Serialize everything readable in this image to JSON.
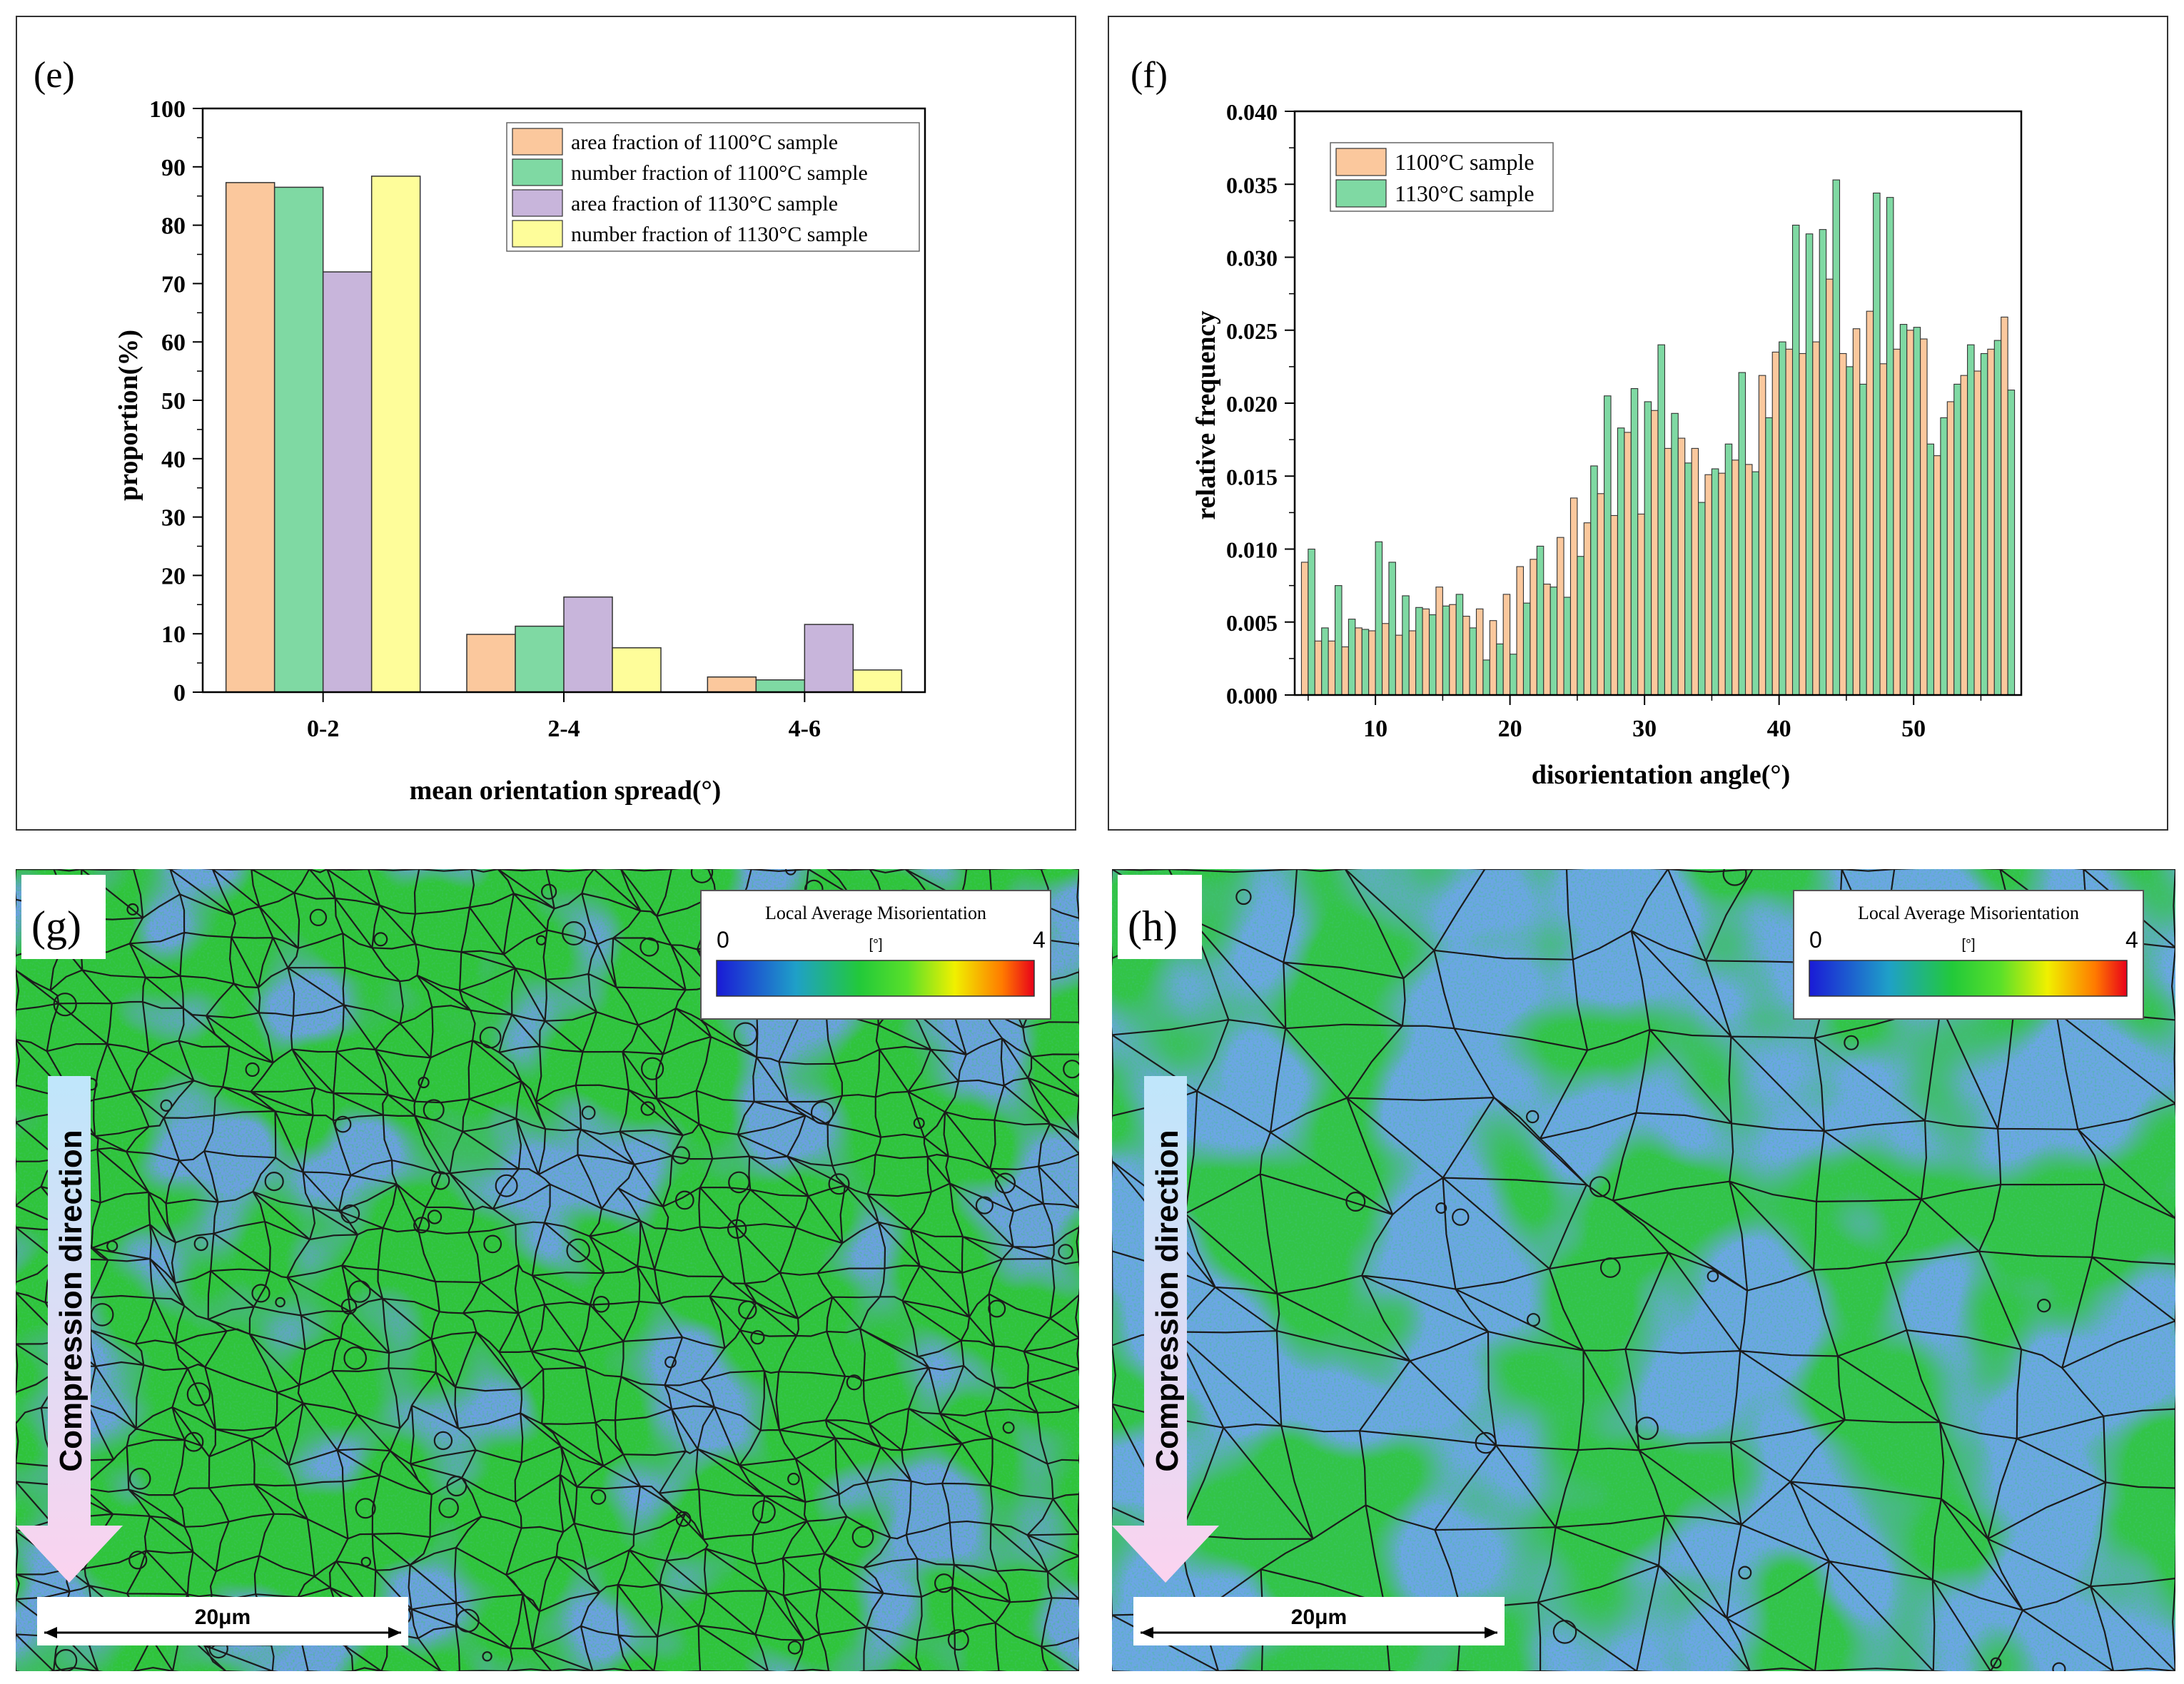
{
  "colors": {
    "orange": "#FBC89D",
    "green": "#7FD9A3",
    "purple": "#C8B5DB",
    "yellow": "#FEFD9A",
    "edge": "#333333"
  },
  "panel_e": {
    "label": "(e)",
    "chart_data": {
      "type": "bar",
      "title": "",
      "xlabel": "mean orientation spread(°)",
      "ylabel": "proportion(%)",
      "ylim": [
        0,
        100
      ],
      "yticks": [
        "0",
        "10",
        "20",
        "30",
        "40",
        "50",
        "60",
        "70",
        "80",
        "90",
        "100"
      ],
      "categories": [
        "0-2",
        "2-4",
        "4-6"
      ],
      "legend_position": "top-right",
      "series": [
        {
          "name": "area fraction of 1100°C sample",
          "color": "#FBC89D",
          "values": [
            87.3,
            9.9,
            2.6
          ]
        },
        {
          "name": "number fraction of 1100°C sample",
          "color": "#7FD9A3",
          "values": [
            86.5,
            11.3,
            2.1
          ]
        },
        {
          "name": "area fraction of 1130°C sample",
          "color": "#C8B5DB",
          "values": [
            72.0,
            16.3,
            11.6
          ]
        },
        {
          "name": "number fraction of 1130°C sample",
          "color": "#FEFD9A",
          "values": [
            88.4,
            7.6,
            3.8
          ]
        }
      ]
    }
  },
  "panel_f": {
    "label": "(f)",
    "chart_data": {
      "type": "bar",
      "title": "",
      "xlabel": "disorientation angle(°)",
      "ylabel": "relative frequency",
      "xlim": [
        4,
        58
      ],
      "ylim": [
        0,
        0.04
      ],
      "xticks": [
        "10",
        "20",
        "30",
        "40",
        "50"
      ],
      "yticks": [
        "0.000",
        "0.005",
        "0.010",
        "0.015",
        "0.020",
        "0.025",
        "0.030",
        "0.035",
        "0.040"
      ],
      "legend_position": "top-left",
      "x": [
        5,
        6,
        7,
        8,
        9,
        10,
        11,
        12,
        13,
        14,
        15,
        16,
        17,
        18,
        19,
        20,
        21,
        22,
        23,
        24,
        25,
        26,
        27,
        28,
        29,
        30,
        31,
        32,
        33,
        34,
        35,
        36,
        37,
        38,
        39,
        40,
        41,
        42,
        43,
        44,
        45,
        46,
        47,
        48,
        49,
        50,
        51,
        52,
        53,
        54,
        55,
        56,
        57
      ],
      "series": [
        {
          "name": "1100°C sample",
          "color": "#FBC89D",
          "values": [
            0.0091,
            0.0037,
            0.0037,
            0.0033,
            0.0046,
            0.0044,
            0.0049,
            0.0041,
            0.0044,
            0.0059,
            0.0074,
            0.0062,
            0.0054,
            0.0059,
            0.0051,
            0.0069,
            0.0088,
            0.0093,
            0.0076,
            0.0108,
            0.0135,
            0.0118,
            0.0138,
            0.0123,
            0.018,
            0.0124,
            0.0195,
            0.0169,
            0.0176,
            0.0169,
            0.0151,
            0.0152,
            0.0161,
            0.0158,
            0.0219,
            0.0235,
            0.0237,
            0.0234,
            0.0242,
            0.0285,
            0.0234,
            0.0251,
            0.0263,
            0.0227,
            0.0237,
            0.025,
            0.0244,
            0.0164,
            0.0201,
            0.0219,
            0.0222,
            0.0237,
            0.0259
          ]
        },
        {
          "name": "1130°C sample",
          "color": "#7FD9A3",
          "values": [
            0.01,
            0.0046,
            0.0075,
            0.0052,
            0.0045,
            0.0105,
            0.0091,
            0.0068,
            0.006,
            0.0055,
            0.0061,
            0.0069,
            0.0046,
            0.0024,
            0.0035,
            0.0028,
            0.0063,
            0.0102,
            0.0074,
            0.0067,
            0.0095,
            0.0157,
            0.0205,
            0.0183,
            0.021,
            0.0201,
            0.024,
            0.0193,
            0.0159,
            0.0132,
            0.0155,
            0.0172,
            0.0221,
            0.0153,
            0.019,
            0.0242,
            0.0322,
            0.0316,
            0.0319,
            0.0353,
            0.0225,
            0.0213,
            0.0344,
            0.0341,
            0.0254,
            0.0252,
            0.0172,
            0.019,
            0.0213,
            0.024,
            0.0234,
            0.0243,
            0.0209
          ]
        }
      ]
    }
  },
  "panel_g": {
    "label": "(g)",
    "colorbar_title": "Local Average Misorientation",
    "colorbar_min": "0",
    "colorbar_max": "4",
    "colorbar_unit": "[°]",
    "direction_label": "Compression direction",
    "scale_label": "20μm"
  },
  "panel_h": {
    "label": "(h)",
    "colorbar_title": "Local Average Misorientation",
    "colorbar_min": "0",
    "colorbar_max": "4",
    "colorbar_unit": "[°]",
    "direction_label": "Compression direction",
    "scale_label": "20μm"
  }
}
